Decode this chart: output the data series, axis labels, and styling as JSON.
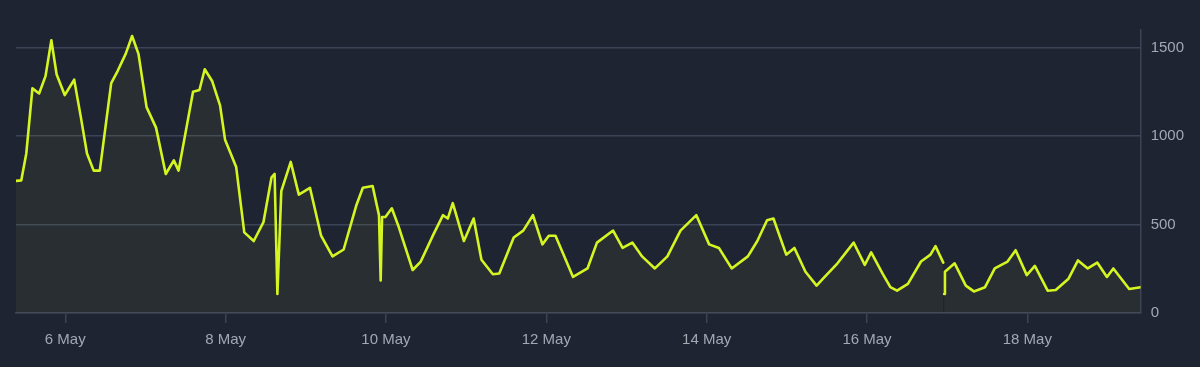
{
  "chart_data": {
    "type": "area",
    "x": [
      "--05-05T09:15",
      "--05-05T10:50",
      "--05-05T12:20",
      "--05-05T14:10",
      "--05-05T16:10",
      "--05-05T18:05",
      "--05-05T19:50",
      "--05-05T21:25",
      "--05-05T23:50",
      "--05-06T02:40",
      "--05-06T04:35",
      "--05-06T06:30",
      "--05-06T08:30",
      "--05-06T10:20",
      "--05-06T13:45",
      "--05-06T15:40",
      "--05-06T18:05",
      "--05-06T20:00",
      "--05-06T21:55",
      "--05-07T00:20",
      "--05-07T03:10",
      "--05-07T06:05",
      "--05-07T08:30",
      "--05-07T09:55",
      "--05-07T14:15",
      "--05-07T16:10",
      "--05-07T17:45",
      "--05-07T20:00",
      "--05-07T22:20",
      "--05-07T23:50",
      "--05-08T03:10",
      "--05-08T05:35",
      "--05-08T08:25",
      "--05-08T11:20",
      "--05-08T13:45",
      "--05-08T14:40",
      "--05-08T15:30",
      "--05-08T16:40",
      "--05-08T19:30",
      "--05-08T21:55",
      "--05-09T01:15",
      "--05-09T04:35",
      "--05-09T08:00",
      "--05-09T11:20",
      "--05-09T15:10",
      "--05-09T17:05",
      "--05-09T20:00",
      "--05-09T21:55",
      "--05-09T22:25",
      "--05-09T22:50",
      "--05-09T23:50",
      "--05-10T01:45",
      "--05-10T03:40",
      "--05-10T08:00",
      "--05-10T10:25",
      "--05-10T14:15",
      "--05-10T17:05",
      "--05-10T18:30",
      "--05-10T20:00",
      "--05-10T23:20",
      "--05-11T02:15",
      "--05-11T04:35",
      "--05-11T08:00",
      "--05-11T09:55",
      "--05-11T14:15",
      "--05-11T17:05",
      "--05-11T20:00",
      "--05-11T22:50",
      "--05-12T00:45",
      "--05-12T02:45",
      "--05-12T08:00",
      "--05-12T12:20",
      "--05-12T15:10",
      "--05-12T20:00",
      "--05-12T22:50",
      "--05-13T01:45",
      "--05-13T04:40",
      "--05-13T08:30",
      "--05-13T12:15",
      "--05-13T16:10",
      "--05-13T20:55",
      "--05-14T00:45",
      "--05-14T03:40",
      "--05-14T07:30",
      "--05-14T12:20",
      "--05-14T15:10",
      "--05-14T18:05",
      "--05-14T20:00",
      "--05-14T23:50",
      "--05-15T02:15",
      "--05-15T05:35",
      "--05-15T08:55",
      "--05-15T10:50",
      "--05-15T15:10",
      "--05-15T20:00",
      "--05-15T23:20",
      "--05-16T01:15",
      "--05-16T04:40",
      "--05-16T07:00",
      "--05-16T09:00",
      "--05-16T12:15",
      "--05-16T16:10",
      "--05-16T19:00",
      "--05-16T20:30",
      "--05-16T22:50",
      "--05-16T22:58",
      "--05-16T23:05",
      "--05-16T23:20",
      "--05-17T02:15",
      "--05-17T05:35",
      "--05-17T08:00",
      "--05-17T11:20",
      "--05-17T14:15",
      "--05-17T18:05",
      "--05-17T20:30",
      "--05-17T23:50",
      "--05-18T02:15",
      "--05-18T06:05",
      "--05-18T08:30",
      "--05-18T12:20",
      "--05-18T15:10",
      "--05-18T18:05",
      "--05-18T20:55",
      "--05-18T23:50",
      "--05-19T01:45",
      "--05-19T06:30",
      "--05-19T09:55"
    ],
    "series": [
      {
        "color": "#d4f522",
        "values": [
          747,
          750,
          902,
          1270,
          1241,
          1339,
          1542,
          1348,
          1232,
          1319,
          1116,
          902,
          805,
          805,
          1300,
          1368,
          1465,
          1566,
          1465,
          1164,
          1048,
          786,
          863,
          805,
          1251,
          1261,
          1378,
          1310,
          1174,
          980,
          825,
          456,
          407,
          514,
          767,
          786,
          107,
          689,
          854,
          669,
          708,
          437,
          320,
          359,
          611,
          708,
          718,
          553,
          184,
          543,
          543,
          592,
          495,
          243,
          291,
          446,
          553,
          534,
          621,
          407,
          534,
          301,
          219,
          223,
          427,
          466,
          553,
          388,
          437,
          437,
          204,
          252,
          398,
          466,
          368,
          398,
          320,
          252,
          320,
          466,
          553,
          388,
          368,
          252,
          320,
          407,
          524,
          534,
          330,
          368,
          233,
          155,
          194,
          281,
          398,
          272,
          343,
          223,
          146,
          126,
          165,
          291,
          330,
          378,
          285,
          null,
          107,
          233,
          281,
          155,
          122,
          146,
          252,
          291,
          355,
          214,
          266,
          126,
          130,
          194,
          297,
          252,
          285,
          204,
          252,
          136,
          146
        ]
      }
    ],
    "xlim": [
      "--05-05T09:15",
      "--05-19T09:55"
    ],
    "xticks": [
      {
        "value": "--05-06",
        "label": "6 May"
      },
      {
        "value": "--05-08",
        "label": "8 May"
      },
      {
        "value": "--05-10",
        "label": "10 May"
      },
      {
        "value": "--05-12",
        "label": "12 May"
      },
      {
        "value": "--05-14",
        "label": "14 May"
      },
      {
        "value": "--05-16",
        "label": "16 May"
      },
      {
        "value": "--05-18",
        "label": "18 May"
      }
    ],
    "ylim": [
      0,
      1600
    ],
    "yticks": [
      0,
      500,
      1000,
      1500
    ],
    "grid": "y",
    "legend": false,
    "marker": "none",
    "line_style": "solid"
  }
}
